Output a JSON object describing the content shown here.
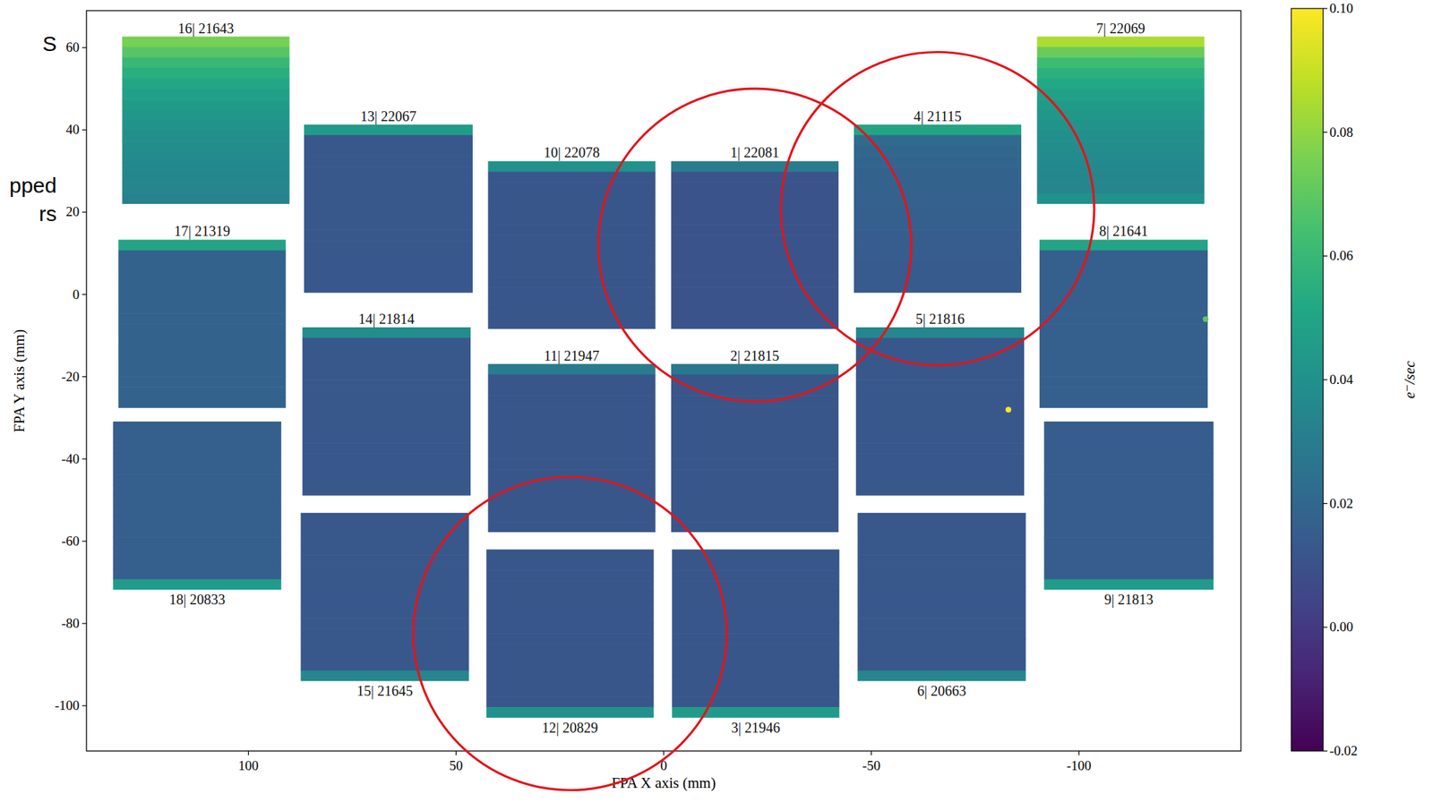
{
  "chart_data": {
    "type": "heatmap",
    "x_label": "FPA X axis (mm)",
    "y_label": "FPA Y axis (mm)",
    "xlim": [
      139,
      -139
    ],
    "ylim": [
      -111,
      69
    ],
    "xticks": [
      100,
      50,
      0,
      -50,
      -100
    ],
    "yticks": [
      -100,
      -80,
      -60,
      -40,
      -20,
      0,
      20,
      40,
      60
    ],
    "annotations": [
      "S",
      "pped",
      "rs"
    ],
    "colorbar": {
      "lim": [
        -0.02,
        0.1
      ],
      "ticks": [
        -0.02,
        {
          "value": 0,
          "label": "0.00"
        },
        0.02,
        0.04,
        0.06,
        0.08,
        {
          "value": 0.1,
          "label": "0.10"
        }
      ],
      "label": "e⁻/sec"
    },
    "detectors": [
      {
        "label": "1| 22081",
        "x": [
          -1.8,
          -42.1
        ],
        "y": [
          -8.4,
          32.4
        ],
        "circled": true,
        "values": [
          0.03,
          0.011,
          0.011,
          0.011,
          0.011,
          0.011,
          0.011,
          0.011,
          0.011,
          0.011,
          0.011,
          0.011,
          0.011,
          0.011,
          0.011,
          0.011
        ]
      },
      {
        "label": "2| 21815",
        "x": [
          -1.8,
          -42.1
        ],
        "y": [
          -57.8,
          -16.9
        ],
        "values": [
          0.028,
          0.012,
          0.012,
          0.012,
          0.012,
          0.012,
          0.012,
          0.012,
          0.012,
          0.012,
          0.012,
          0.012,
          0.012,
          0.012,
          0.012,
          0.012
        ]
      },
      {
        "label": "3| 21946",
        "x": [
          -2.0,
          -42.3
        ],
        "y": [
          -102.9,
          -62.0
        ],
        "values": [
          0.012,
          0.012,
          0.012,
          0.012,
          0.012,
          0.012,
          0.012,
          0.012,
          0.012,
          0.012,
          0.012,
          0.012,
          0.012,
          0.012,
          0.012,
          0.045
        ]
      },
      {
        "label": "4| 21115",
        "x": [
          -45.8,
          -86.1
        ],
        "y": [
          0.4,
          41.3
        ],
        "circled": true,
        "values": [
          0.05,
          0.022,
          0.02,
          0.019,
          0.018,
          0.018,
          0.017,
          0.017,
          0.016,
          0.016,
          0.015,
          0.015,
          0.015,
          0.014,
          0.014,
          0.014
        ]
      },
      {
        "label": "5| 21816",
        "x": [
          -46.3,
          -86.8
        ],
        "y": [
          -48.9,
          -8.0
        ],
        "values": [
          0.035,
          0.013,
          0.013,
          0.013,
          0.013,
          0.013,
          0.013,
          0.013,
          0.013,
          0.013,
          0.013,
          0.013,
          0.013,
          0.013,
          0.013,
          0.013
        ]
      },
      {
        "label": "6| 20663",
        "x": [
          -46.7,
          -87.2
        ],
        "y": [
          -94.0,
          -53.1
        ],
        "values": [
          0.013,
          0.013,
          0.013,
          0.013,
          0.013,
          0.013,
          0.013,
          0.013,
          0.013,
          0.013,
          0.013,
          0.013,
          0.013,
          0.013,
          0.013,
          0.035
        ]
      },
      {
        "label": "7| 22069",
        "x": [
          -89.9,
          -130.2
        ],
        "y": [
          22.0,
          62.7
        ],
        "values": [
          0.085,
          0.072,
          0.062,
          0.056,
          0.052,
          0.048,
          0.045,
          0.043,
          0.041,
          0.039,
          0.038,
          0.037,
          0.036,
          0.035,
          0.034,
          0.04
        ]
      },
      {
        "label": "8| 21641",
        "x": [
          -90.5,
          -131.0
        ],
        "y": [
          -27.6,
          13.3
        ],
        "values": [
          0.05,
          0.016,
          0.016,
          0.016,
          0.016,
          0.016,
          0.016,
          0.016,
          0.016,
          0.016,
          0.016,
          0.016,
          0.016,
          0.016,
          0.016,
          0.016
        ]
      },
      {
        "label": "9| 21813",
        "x": [
          -91.6,
          -132.4
        ],
        "y": [
          -71.8,
          -30.9
        ],
        "values": [
          0.015,
          0.015,
          0.015,
          0.015,
          0.015,
          0.015,
          0.015,
          0.015,
          0.015,
          0.015,
          0.015,
          0.015,
          0.015,
          0.015,
          0.015,
          0.045
        ]
      },
      {
        "label": "10| 22078",
        "x": [
          42.3,
          2.0
        ],
        "y": [
          -8.4,
          32.4
        ],
        "values": [
          0.04,
          0.012,
          0.012,
          0.012,
          0.012,
          0.012,
          0.012,
          0.012,
          0.012,
          0.012,
          0.012,
          0.012,
          0.012,
          0.012,
          0.012,
          0.012
        ]
      },
      {
        "label": "11| 21947",
        "x": [
          42.3,
          2.0
        ],
        "y": [
          -57.8,
          -16.9
        ],
        "values": [
          0.03,
          0.012,
          0.012,
          0.012,
          0.012,
          0.012,
          0.012,
          0.012,
          0.012,
          0.012,
          0.012,
          0.012,
          0.012,
          0.012,
          0.012,
          0.012
        ]
      },
      {
        "label": "12| 20829",
        "x": [
          42.7,
          2.4
        ],
        "y": [
          -102.9,
          -62.0
        ],
        "circled": true,
        "values": [
          0.012,
          0.012,
          0.012,
          0.012,
          0.012,
          0.012,
          0.012,
          0.012,
          0.012,
          0.012,
          0.012,
          0.012,
          0.012,
          0.012,
          0.012,
          0.04
        ]
      },
      {
        "label": "13| 22067",
        "x": [
          86.6,
          46.0
        ],
        "y": [
          0.4,
          41.3
        ],
        "values": [
          0.045,
          0.013,
          0.013,
          0.013,
          0.013,
          0.013,
          0.013,
          0.013,
          0.013,
          0.013,
          0.013,
          0.013,
          0.013,
          0.013,
          0.013,
          0.013
        ]
      },
      {
        "label": "14| 21814",
        "x": [
          87.0,
          46.5
        ],
        "y": [
          -48.9,
          -8.0
        ],
        "values": [
          0.038,
          0.013,
          0.013,
          0.013,
          0.013,
          0.013,
          0.013,
          0.013,
          0.013,
          0.013,
          0.013,
          0.013,
          0.013,
          0.013,
          0.013,
          0.013
        ]
      },
      {
        "label": "15| 21645",
        "x": [
          87.4,
          46.9
        ],
        "y": [
          -94.0,
          -53.1
        ],
        "values": [
          0.013,
          0.013,
          0.013,
          0.013,
          0.013,
          0.013,
          0.013,
          0.013,
          0.013,
          0.013,
          0.013,
          0.013,
          0.013,
          0.013,
          0.013,
          0.035
        ]
      },
      {
        "label": "16| 21643",
        "x": [
          130.4,
          90.1
        ],
        "y": [
          22.0,
          62.7
        ],
        "values": [
          0.075,
          0.068,
          0.06,
          0.055,
          0.051,
          0.048,
          0.045,
          0.043,
          0.041,
          0.039,
          0.038,
          0.037,
          0.036,
          0.035,
          0.034,
          0.033
        ]
      },
      {
        "label": "17| 21319",
        "x": [
          131.3,
          91.0
        ],
        "y": [
          -27.6,
          13.3
        ],
        "values": [
          0.05,
          0.018,
          0.018,
          0.018,
          0.018,
          0.018,
          0.018,
          0.018,
          0.018,
          0.018,
          0.018,
          0.018,
          0.018,
          0.018,
          0.018,
          0.018
        ]
      },
      {
        "label": "18| 20833",
        "x": [
          132.6,
          92.1
        ],
        "y": [
          -71.8,
          -30.9
        ],
        "values": [
          0.016,
          0.016,
          0.016,
          0.016,
          0.016,
          0.016,
          0.016,
          0.016,
          0.016,
          0.016,
          0.016,
          0.016,
          0.016,
          0.016,
          0.016,
          0.045
        ]
      }
    ],
    "hot_pixels": [
      {
        "x": -83.0,
        "y": -28.0,
        "value": 0.1
      },
      {
        "x": -130.5,
        "y": -6.0,
        "value": 0.07
      }
    ]
  }
}
